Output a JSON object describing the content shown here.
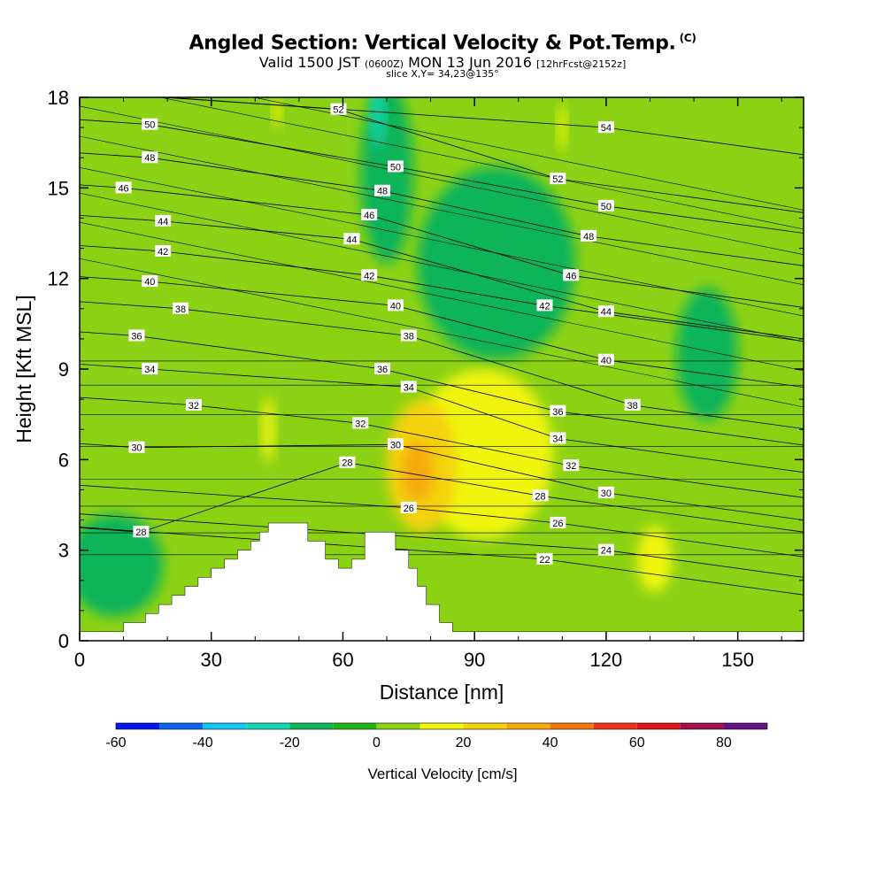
{
  "title": {
    "main": "Angled Section: Vertical Velocity & Pot.Temp.",
    "mark": "(C)",
    "valid_prefix": "Valid 1500 JST",
    "valid_z": "(0600Z)",
    "valid_date": "MON 13 Jun 2016",
    "forecast": "[12hrFcst@2152z]",
    "slice": "slice X,Y= 34,23@135°"
  },
  "chart_data": {
    "type": "heatmap",
    "xlabel": "Distance [nm]",
    "ylabel": "Height [Kft MSL]",
    "xlim": [
      0,
      165
    ],
    "ylim": [
      0,
      18
    ],
    "xticks": [
      0,
      30,
      60,
      90,
      120,
      150
    ],
    "yticks": [
      0,
      3,
      6,
      9,
      12,
      15,
      18
    ],
    "colorbar": {
      "title": "Vertical Velocity [cm/s]",
      "levels": [
        -60,
        -50,
        -40,
        -30,
        -20,
        -10,
        0,
        10,
        20,
        30,
        40,
        50,
        60,
        70,
        80,
        90
      ],
      "tick_values": [
        -60,
        -40,
        -20,
        0,
        20,
        40,
        60,
        80
      ],
      "colors": [
        "#0a14f0",
        "#0a64f0",
        "#10c8f5",
        "#14d7b4",
        "#10b45a",
        "#23b412",
        "#8cd214",
        "#f0f50a",
        "#f5d20a",
        "#f5aa0a",
        "#f0780a",
        "#f03214",
        "#dc1414",
        "#a0104b",
        "#641487"
      ]
    },
    "field_shading": [
      {
        "x": 8,
        "y": 2.5,
        "value": -12,
        "rx": 11,
        "ry": 1.7
      },
      {
        "x": 70,
        "y": 15.5,
        "value": -15,
        "rx": 6,
        "ry": 3
      },
      {
        "x": 68,
        "y": 17.5,
        "value": -22,
        "rx": 1.5,
        "ry": 1.2
      },
      {
        "x": 95,
        "y": 12.5,
        "value": -12,
        "rx": 18,
        "ry": 3.2
      },
      {
        "x": 143,
        "y": 9.5,
        "value": -12,
        "rx": 7,
        "ry": 2.2
      },
      {
        "x": 92,
        "y": 6.2,
        "value": 15,
        "rx": 16,
        "ry": 2.8
      },
      {
        "x": 78,
        "y": 5.8,
        "value": 28,
        "rx": 8,
        "ry": 2.2
      },
      {
        "x": 77,
        "y": 5.6,
        "value": 35,
        "rx": 3.5,
        "ry": 1.0
      },
      {
        "x": 131,
        "y": 2.7,
        "value": 15,
        "rx": 4,
        "ry": 1.1
      },
      {
        "x": 43,
        "y": 7.0,
        "value": 15,
        "rx": 1.5,
        "ry": 1.1
      },
      {
        "x": 45,
        "y": 17.5,
        "value": 15,
        "rx": 1,
        "ry": 0.5
      },
      {
        "x": 110,
        "y": 17.0,
        "value": 15,
        "rx": 1,
        "ry": 0.8
      },
      {
        "x": 30,
        "y": 13.5,
        "value": 5,
        "rx": 8,
        "ry": 3.5
      },
      {
        "x": 45,
        "y": 8.0,
        "value": 5,
        "rx": 6,
        "ry": 3.0
      },
      {
        "x": 135,
        "y": 11.5,
        "value": 5,
        "rx": 7,
        "ry": 2.0
      },
      {
        "x": 115,
        "y": 15.5,
        "value": 5,
        "rx": 5,
        "ry": 2.5
      },
      {
        "x": 140,
        "y": 17.0,
        "value": 5,
        "rx": 8,
        "ry": 1.2
      },
      {
        "x": 60,
        "y": 17.0,
        "value": 5,
        "rx": 5,
        "ry": 1.2
      },
      {
        "x": 145,
        "y": 2.0,
        "value": 5,
        "rx": 20,
        "ry": 1.8
      },
      {
        "x": 15,
        "y": 9.0,
        "value": 5,
        "rx": 14,
        "ry": 2.5
      }
    ],
    "terrain": [
      [
        0,
        0.3
      ],
      [
        10,
        0.3
      ],
      [
        10,
        0.6
      ],
      [
        15,
        0.6
      ],
      [
        15,
        0.9
      ],
      [
        18,
        0.9
      ],
      [
        18,
        1.2
      ],
      [
        21,
        1.2
      ],
      [
        21,
        1.5
      ],
      [
        24,
        1.5
      ],
      [
        24,
        1.8
      ],
      [
        27,
        1.8
      ],
      [
        27,
        2.1
      ],
      [
        30,
        2.1
      ],
      [
        30,
        2.4
      ],
      [
        33,
        2.4
      ],
      [
        33,
        2.7
      ],
      [
        36,
        2.7
      ],
      [
        36,
        3.0
      ],
      [
        39,
        3.0
      ],
      [
        39,
        3.3
      ],
      [
        41,
        3.3
      ],
      [
        41,
        3.6
      ],
      [
        43,
        3.6
      ],
      [
        43,
        3.9
      ],
      [
        52,
        3.9
      ],
      [
        52,
        3.3
      ],
      [
        56,
        3.3
      ],
      [
        56,
        2.7
      ],
      [
        59,
        2.7
      ],
      [
        59,
        2.4
      ],
      [
        62,
        2.4
      ],
      [
        62,
        2.7
      ],
      [
        65,
        2.7
      ],
      [
        65,
        3.6
      ],
      [
        72,
        3.6
      ],
      [
        72,
        3.0
      ],
      [
        75,
        3.0
      ],
      [
        75,
        2.4
      ],
      [
        77,
        2.4
      ],
      [
        77,
        1.8
      ],
      [
        79,
        1.8
      ],
      [
        79,
        1.2
      ],
      [
        82,
        1.2
      ],
      [
        82,
        0.6
      ],
      [
        85,
        0.6
      ],
      [
        85,
        0.3
      ],
      [
        165,
        0.3
      ]
    ],
    "theta_contour_labels": [
      {
        "x": 16,
        "y": 17.1,
        "value": 50
      },
      {
        "x": 16,
        "y": 16.0,
        "value": 48
      },
      {
        "x": 10,
        "y": 15.0,
        "value": 46
      },
      {
        "x": 19,
        "y": 13.9,
        "value": 44
      },
      {
        "x": 19,
        "y": 12.9,
        "value": 42
      },
      {
        "x": 16,
        "y": 11.9,
        "value": 40
      },
      {
        "x": 23,
        "y": 11.0,
        "value": 38
      },
      {
        "x": 13,
        "y": 10.1,
        "value": 36
      },
      {
        "x": 16,
        "y": 9.0,
        "value": 34
      },
      {
        "x": 26,
        "y": 7.8,
        "value": 32
      },
      {
        "x": 13,
        "y": 6.4,
        "value": 30
      },
      {
        "x": 14,
        "y": 3.6,
        "value": 28
      },
      {
        "x": 59,
        "y": 17.6,
        "value": 52
      },
      {
        "x": 72,
        "y": 15.7,
        "value": 50
      },
      {
        "x": 69,
        "y": 14.9,
        "value": 48
      },
      {
        "x": 66,
        "y": 14.1,
        "value": 46
      },
      {
        "x": 62,
        "y": 13.3,
        "value": 44
      },
      {
        "x": 66,
        "y": 12.1,
        "value": 42
      },
      {
        "x": 72,
        "y": 11.1,
        "value": 40
      },
      {
        "x": 75,
        "y": 10.1,
        "value": 38
      },
      {
        "x": 69,
        "y": 9.0,
        "value": 36
      },
      {
        "x": 75,
        "y": 8.4,
        "value": 34
      },
      {
        "x": 64,
        "y": 7.2,
        "value": 32
      },
      {
        "x": 72,
        "y": 6.5,
        "value": 30
      },
      {
        "x": 61,
        "y": 5.9,
        "value": 28
      },
      {
        "x": 75,
        "y": 4.4,
        "value": 26
      },
      {
        "x": 120,
        "y": 17.0,
        "value": 54
      },
      {
        "x": 109,
        "y": 15.3,
        "value": 52
      },
      {
        "x": 120,
        "y": 14.4,
        "value": 50
      },
      {
        "x": 116,
        "y": 13.4,
        "value": 48
      },
      {
        "x": 112,
        "y": 12.1,
        "value": 46
      },
      {
        "x": 106,
        "y": 11.1,
        "value": 42
      },
      {
        "x": 120,
        "y": 10.9,
        "value": 44
      },
      {
        "x": 120,
        "y": 9.3,
        "value": 40
      },
      {
        "x": 126,
        "y": 7.8,
        "value": 38
      },
      {
        "x": 109,
        "y": 7.6,
        "value": 36
      },
      {
        "x": 109,
        "y": 6.7,
        "value": 34
      },
      {
        "x": 112,
        "y": 5.8,
        "value": 32
      },
      {
        "x": 120,
        "y": 4.9,
        "value": 30
      },
      {
        "x": 105,
        "y": 4.8,
        "value": 28
      },
      {
        "x": 109,
        "y": 3.9,
        "value": 26
      },
      {
        "x": 120,
        "y": 3.0,
        "value": 24
      },
      {
        "x": 106,
        "y": 2.7,
        "value": 22
      }
    ]
  }
}
